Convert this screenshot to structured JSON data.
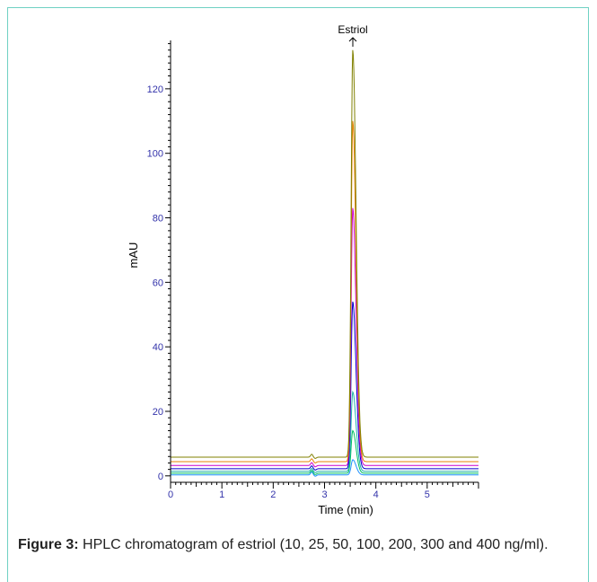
{
  "chart_data": {
    "type": "line",
    "annotation": "Estriol",
    "xlabel": "Time (min)",
    "ylabel": "mAU",
    "xlim": [
      0,
      6
    ],
    "ylim": [
      -2,
      135
    ],
    "x_ticks": [
      0,
      1,
      2,
      3,
      4,
      5
    ],
    "y_ticks": [
      0,
      20,
      40,
      60,
      80,
      100,
      120
    ],
    "peak_time": 3.55,
    "grid": false,
    "series": [
      {
        "color": "#1e90ff",
        "baseline": 0.3,
        "peak": 5
      },
      {
        "color": "#00c060",
        "baseline": 0.8,
        "peak": 14
      },
      {
        "color": "#20b2aa",
        "baseline": 1.4,
        "peak": 26
      },
      {
        "color": "#0000cc",
        "baseline": 2.2,
        "peak": 54
      },
      {
        "color": "#cc00cc",
        "baseline": 3.2,
        "peak": 83
      },
      {
        "color": "#e88000",
        "baseline": 4.4,
        "peak": 110
      },
      {
        "color": "#808000",
        "baseline": 5.8,
        "peak": 132
      }
    ]
  },
  "caption": {
    "label": "Figure 3:",
    "text": "HPLC chromatogram of estriol (10, 25, 50, 100, 200, 300 and 400 ng/ml)."
  }
}
